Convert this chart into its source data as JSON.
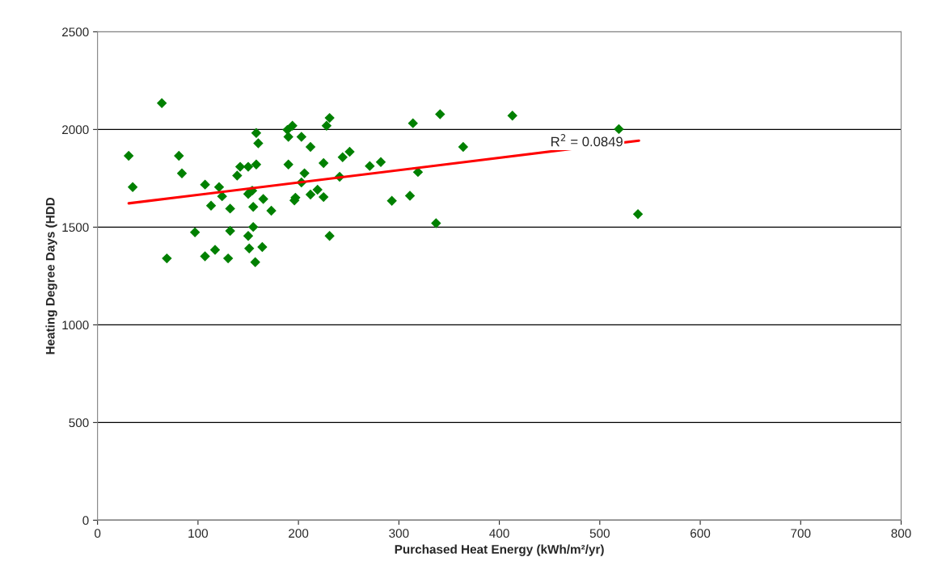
{
  "chart_data": {
    "type": "scatter",
    "xlabel": "Purchased Heat Energy (kWh/m²/yr)",
    "ylabel": "Heating Degree Days (HDD",
    "xlim": [
      0,
      800
    ],
    "xticks": [
      0,
      100,
      200,
      300,
      400,
      500,
      600,
      700,
      800
    ],
    "ylim": [
      0,
      2500
    ],
    "yticks": [
      0,
      500,
      1000,
      1500,
      2000,
      2500
    ],
    "grid": "y",
    "marker": "diamond",
    "annotations": [
      "R$^{2}$ = 0.0849"
    ],
    "series": [
      {
        "color": "#008000",
        "x": [
          31,
          35,
          64,
          81,
          84,
          107,
          121,
          124,
          113,
          132,
          139,
          142,
          150,
          158,
          158,
          160,
          150,
          152,
          154,
          155,
          97,
          132,
          155,
          150,
          151,
          117,
          107,
          130,
          157,
          69,
          164,
          165,
          173,
          189,
          194,
          190,
          203,
          212,
          190,
          206,
          203,
          197,
          196,
          212,
          219,
          225,
          225,
          228,
          231,
          231,
          241,
          244,
          251,
          271,
          282,
          293,
          311,
          314,
          319,
          341,
          337,
          364,
          413,
          519,
          538
        ],
        "values": [
          1865,
          1705,
          2135,
          1865,
          1775,
          1718,
          1705,
          1658,
          1610,
          1595,
          1764,
          1809,
          1809,
          1821,
          1982,
          1929,
          1670,
          1680,
          1687,
          1604,
          1474,
          1481,
          1501,
          1455,
          1391,
          1384,
          1351,
          1340,
          1321,
          1340,
          1398,
          1644,
          1584,
          1998,
          2019,
          1962,
          1962,
          1911,
          1821,
          1776,
          1729,
          1651,
          1637,
          1667,
          1692,
          1654,
          1828,
          2019,
          2059,
          1455,
          1758,
          1858,
          1886,
          1813,
          1833,
          1635,
          1661,
          2032,
          1782,
          2078,
          1520,
          1911,
          2071,
          2002,
          1567
        ]
      },
      {
        "type": "line",
        "color": "#ff0000",
        "marker": "none",
        "line_style": "solid",
        "x": [
          31,
          539
        ],
        "values": [
          1622,
          1943
        ]
      }
    ]
  }
}
